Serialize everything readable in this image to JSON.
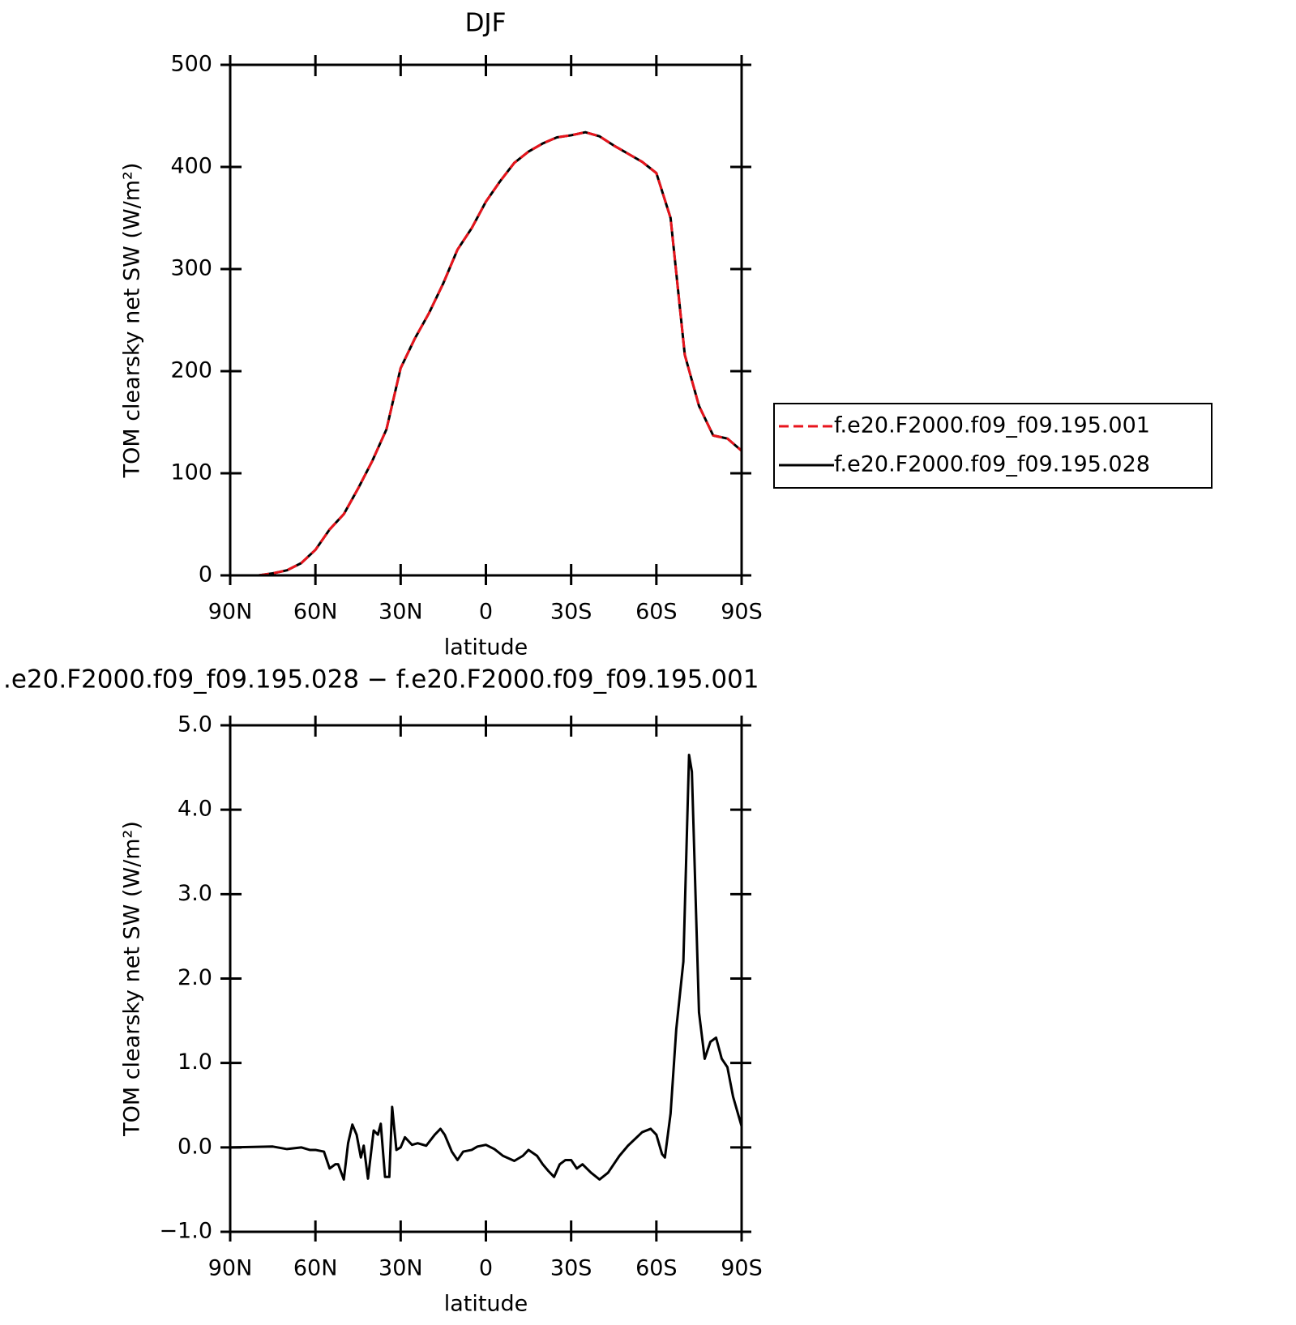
{
  "chart_data": [
    {
      "type": "line",
      "title": "DJF",
      "xlabel": "latitude",
      "ylabel": "TOM clearsky net SW (W/m²)",
      "x": [
        90,
        80,
        75,
        70,
        65,
        60,
        55,
        50,
        45,
        40,
        35,
        30,
        25,
        20,
        15,
        10,
        5,
        0,
        -5,
        -10,
        -15,
        -20,
        -25,
        -30,
        -35,
        -40,
        -45,
        -50,
        -55,
        -60,
        -65,
        -70,
        -75,
        -80,
        -85,
        -90
      ],
      "series": [
        {
          "name": "f.e20.F2000.f09_f09.195.001",
          "color": "#e8141c",
          "dash": true,
          "values": [
            0,
            0,
            2,
            5,
            12,
            25,
            45,
            60,
            85,
            112,
            143,
            203,
            232,
            257,
            286,
            319,
            340,
            366,
            386,
            404,
            415,
            423,
            429,
            431,
            434,
            430,
            421,
            413,
            405,
            394,
            350,
            216,
            166,
            137,
            134,
            122
          ]
        },
        {
          "name": "f.e20.F2000.f09_f09.195.028",
          "color": "#000000",
          "dash": false,
          "values": [
            0,
            0,
            2,
            5,
            12,
            25,
            45,
            60,
            85,
            112,
            143,
            203,
            232,
            257,
            286,
            319,
            340,
            366,
            386,
            404,
            415,
            423,
            429,
            431,
            434,
            430,
            421,
            413,
            405,
            394,
            350,
            216,
            166,
            137,
            134,
            122
          ]
        }
      ],
      "xlim": [
        90,
        -90
      ],
      "xticks": [
        {
          "value": 90,
          "label": "90N"
        },
        {
          "value": 60,
          "label": "60N"
        },
        {
          "value": 30,
          "label": "30N"
        },
        0,
        {
          "value": -30,
          "label": "30S"
        },
        {
          "value": -60,
          "label": "60S"
        },
        {
          "value": -90,
          "label": "90S"
        }
      ],
      "ylim": [
        0,
        500
      ],
      "yticks": [
        0,
        100,
        200,
        300,
        400,
        500
      ],
      "legend": "right"
    },
    {
      "type": "line",
      "title": ".e20.F2000.f09_f09.195.028 − f.e20.F2000.f09_f09.195.001",
      "xlabel": "latitude",
      "ylabel": "TOM clearsky net SW (W/m²)",
      "x": [
        90,
        75,
        70,
        65,
        62,
        60,
        57,
        55,
        53,
        52,
        50,
        48.5,
        47,
        45.5,
        44,
        43,
        41.5,
        39.5,
        38,
        37,
        35.5,
        34,
        33,
        31.5,
        30,
        28.5,
        26,
        24,
        21,
        18,
        16,
        14.5,
        12,
        10,
        8,
        5,
        3,
        0,
        -3,
        -6,
        -10,
        -13,
        -15,
        -18,
        -20,
        -22,
        -24,
        -26,
        -28,
        -30,
        -32,
        -34,
        -37,
        -40,
        -43,
        -47,
        -50,
        -55,
        -58,
        -60,
        -62,
        -63,
        -65,
        -67,
        -69.5,
        -71.5,
        -72.5,
        -75,
        -77,
        -79,
        -81,
        -83,
        -85,
        -87,
        -90
      ],
      "series": [
        {
          "name": null,
          "color": "#000000",
          "dash": false,
          "values": [
            0,
            0.01,
            -0.02,
            0.0,
            -0.03,
            -0.03,
            -0.05,
            -0.25,
            -0.2,
            -0.2,
            -0.38,
            0.05,
            0.27,
            0.15,
            -0.12,
            0.02,
            -0.37,
            0.2,
            0.15,
            0.28,
            -0.35,
            -0.35,
            0.48,
            -0.03,
            0.0,
            0.12,
            0.03,
            0.05,
            0.02,
            0.15,
            0.22,
            0.15,
            -0.05,
            -0.15,
            -0.05,
            -0.03,
            0.01,
            0.03,
            -0.02,
            -0.1,
            -0.16,
            -0.1,
            -0.03,
            -0.1,
            -0.2,
            -0.28,
            -0.35,
            -0.2,
            -0.15,
            -0.15,
            -0.25,
            -0.2,
            -0.3,
            -0.38,
            -0.3,
            -0.1,
            0.02,
            0.18,
            0.22,
            0.15,
            -0.08,
            -0.12,
            0.4,
            1.4,
            2.2,
            4.65,
            4.45,
            1.6,
            1.05,
            1.25,
            1.3,
            1.05,
            0.95,
            0.6,
            0.25
          ]
        }
      ],
      "xlim": [
        90,
        -90
      ],
      "xticks": [
        {
          "value": 90,
          "label": "90N"
        },
        {
          "value": 60,
          "label": "60N"
        },
        {
          "value": 30,
          "label": "30N"
        },
        0,
        {
          "value": -30,
          "label": "30S"
        },
        {
          "value": -60,
          "label": "60S"
        },
        {
          "value": -90,
          "label": "90S"
        }
      ],
      "ylim": [
        -1,
        5
      ],
      "yticks": [
        {
          "value": -1,
          "label": "−1.0"
        },
        {
          "value": 0,
          "label": "0.0"
        },
        {
          "value": 1,
          "label": "1.0"
        },
        {
          "value": 2,
          "label": "2.0"
        },
        {
          "value": 3,
          "label": "3.0"
        },
        {
          "value": 4,
          "label": "4.0"
        },
        {
          "value": 5,
          "label": "5.0"
        }
      ]
    }
  ]
}
